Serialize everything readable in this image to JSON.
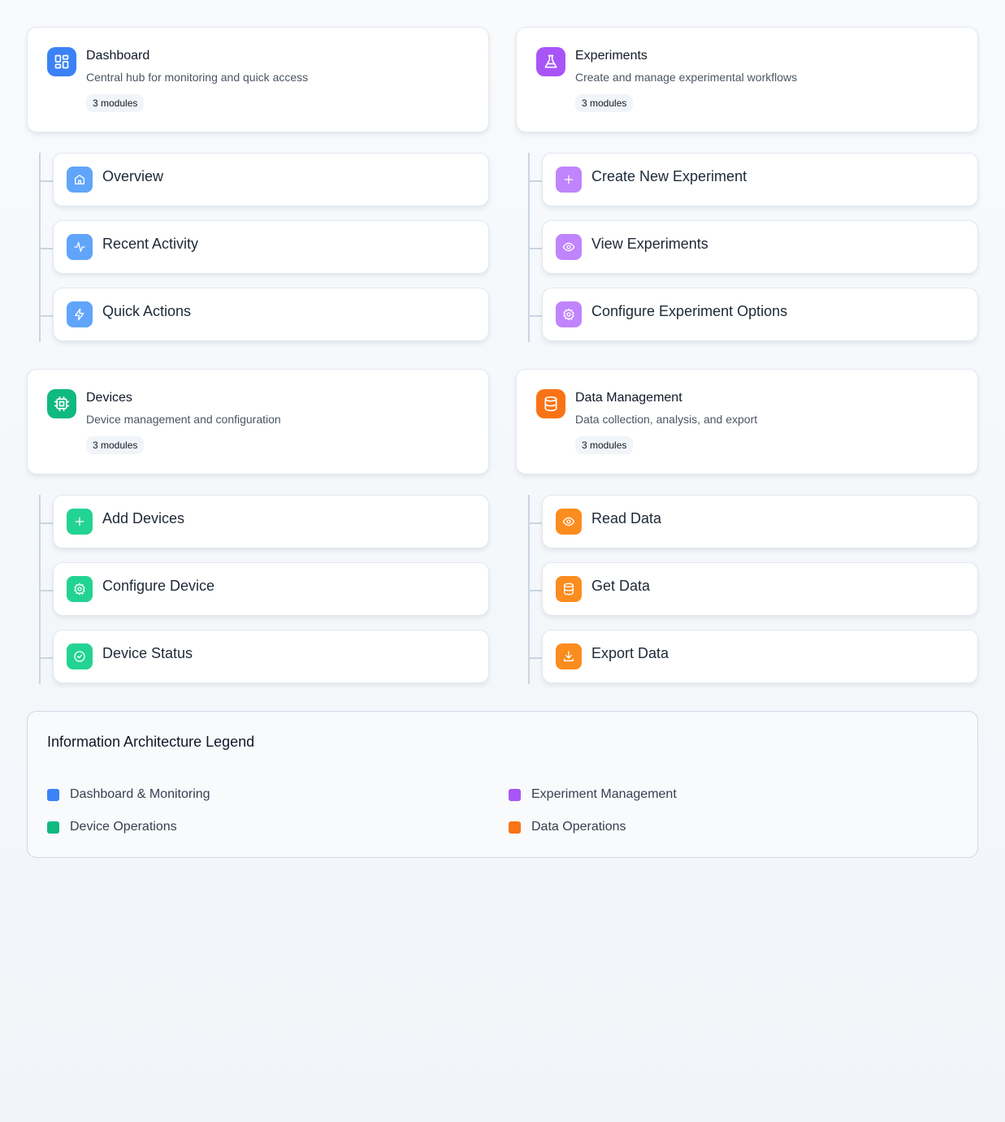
{
  "groups": [
    {
      "title": "Dashboard",
      "description": "Central hub for monitoring and quick access",
      "badge": "3 modules",
      "icon": "layout-grid-icon",
      "color": "#3b82f6",
      "light": "#60a5fa",
      "items": [
        {
          "label": "Overview",
          "icon": "home-icon"
        },
        {
          "label": "Recent Activity",
          "icon": "activity-icon"
        },
        {
          "label": "Quick Actions",
          "icon": "zap-icon"
        }
      ]
    },
    {
      "title": "Experiments",
      "description": "Create and manage experimental workflows",
      "badge": "3 modules",
      "icon": "flask-icon",
      "color": "#a855f7",
      "light": "#c084fc",
      "items": [
        {
          "label": "Create New Experiment",
          "icon": "plus-icon"
        },
        {
          "label": "View Experiments",
          "icon": "eye-icon"
        },
        {
          "label": "Configure Experiment Options",
          "icon": "gear-icon"
        }
      ]
    },
    {
      "title": "Devices",
      "description": "Device management and configuration",
      "badge": "3 modules",
      "icon": "cpu-icon",
      "color": "#10b981",
      "light": "#22d393",
      "items": [
        {
          "label": "Add Devices",
          "icon": "plus-icon"
        },
        {
          "label": "Configure Device",
          "icon": "gear-icon"
        },
        {
          "label": "Device Status",
          "icon": "check-circle-icon"
        }
      ]
    },
    {
      "title": "Data Management",
      "description": "Data collection, analysis, and export",
      "badge": "3 modules",
      "icon": "database-icon",
      "color": "#f97316",
      "light": "#fb8c1e",
      "items": [
        {
          "label": "Read Data",
          "icon": "eye-icon"
        },
        {
          "label": "Get Data",
          "icon": "database-icon"
        },
        {
          "label": "Export Data",
          "icon": "download-icon"
        }
      ]
    }
  ],
  "legend": {
    "title": "Information Architecture Legend",
    "items": [
      {
        "label": "Dashboard & Monitoring",
        "color": "#3b82f6"
      },
      {
        "label": "Experiment Management",
        "color": "#a855f7"
      },
      {
        "label": "Device Operations",
        "color": "#10b981"
      },
      {
        "label": "Data Operations",
        "color": "#f97316"
      }
    ]
  }
}
